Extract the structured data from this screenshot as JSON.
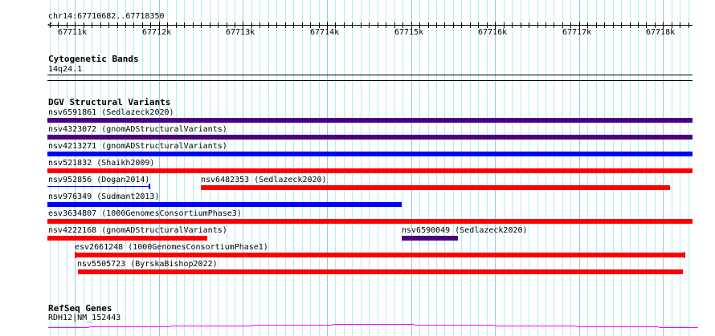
{
  "ruler": {
    "location": "chr14:67710682..67718350",
    "ticks": [
      "67711k",
      "67712k",
      "67713k",
      "67714k",
      "67715k",
      "67716k",
      "67717k",
      "67718k"
    ]
  },
  "cytoband": {
    "title": "Cytogenetic Bands",
    "band": "14q24.1"
  },
  "dgv": {
    "title": "DGV Structural Variants",
    "features": [
      {
        "label": "nsv6591861 (Sedlazeck2020)",
        "color": "#4b0082"
      },
      {
        "label": "nsv4323072 (gnomADStructuralVariants)",
        "color": "#4b0082"
      },
      {
        "label": "nsv4213271 (gnomADStructuralVariants)",
        "color": "#0000ff"
      },
      {
        "label": "nsv521832 (Shaikh2009)",
        "color": "#ff0000"
      },
      {
        "label": "nsv952856 (Dogan2014)",
        "color": "#0000ff"
      },
      {
        "label": "nsv6482353 (Sedlazeck2020)",
        "color": "#ff0000"
      },
      {
        "label": "nsv976349 (Sudmant2013)",
        "color": "#0000ff"
      },
      {
        "label": "esv3634807 (1000GenomesConsortiumPhase3)",
        "color": "#ff0000"
      },
      {
        "label": "nsv4222168 (gnomADStructuralVariants)",
        "color": "#ff0000"
      },
      {
        "label": "nsv6590049 (Sedlazeck2020)",
        "color": "#4b0082"
      },
      {
        "label": "esv2661248 (1000GenomesConsortiumPhase1)",
        "color": "#ff0000"
      },
      {
        "label": "nsv5505723 (ByrskaBishop2022)",
        "color": "#ff0000"
      }
    ]
  },
  "refseq": {
    "title": "RefSeq Genes",
    "gene": "RDH12|NM_152443",
    "color": "#ff00ff"
  }
}
